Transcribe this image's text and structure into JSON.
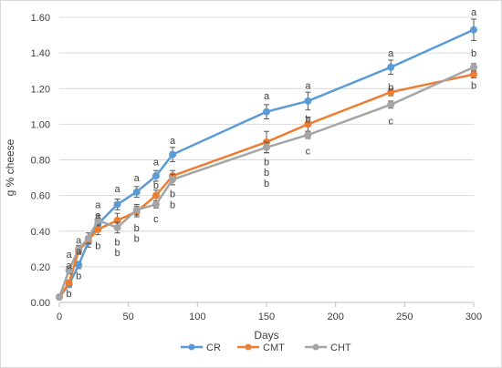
{
  "chart_data": {
    "type": "line",
    "title": "",
    "xlabel": "Days",
    "ylabel": "g % cheese",
    "xlim": [
      0,
      300
    ],
    "ylim": [
      0,
      1.6
    ],
    "xticks": [
      0,
      50,
      100,
      150,
      200,
      250,
      300
    ],
    "yticks": [
      0,
      0.2,
      0.4,
      0.6,
      0.8,
      1.0,
      1.2,
      1.4,
      1.6
    ],
    "ytick_labels": [
      "0.00",
      "0.20",
      "0.40",
      "0.60",
      "0.80",
      "1.00",
      "1.20",
      "1.40",
      "1.60"
    ],
    "grid": true,
    "legend_position": "bottom",
    "series": [
      {
        "name": "CR",
        "color": "#5b9bd5",
        "x": [
          0,
          7,
          14,
          21,
          28,
          42,
          56,
          70,
          82,
          150,
          180,
          240,
          300
        ],
        "values": [
          0.03,
          0.1,
          0.21,
          0.34,
          0.44,
          0.55,
          0.62,
          0.71,
          0.83,
          1.07,
          1.13,
          1.32,
          1.53
        ],
        "error": [
          0.01,
          0.015,
          0.02,
          0.03,
          0.03,
          0.03,
          0.03,
          0.03,
          0.04,
          0.04,
          0.05,
          0.04,
          0.06
        ]
      },
      {
        "name": "CMT",
        "color": "#ed7d31",
        "x": [
          0,
          7,
          14,
          21,
          28,
          42,
          56,
          70,
          82,
          150,
          180,
          240,
          300
        ],
        "values": [
          0.03,
          0.11,
          0.29,
          0.35,
          0.41,
          0.46,
          0.51,
          0.6,
          0.71,
          0.9,
          1.0,
          1.18,
          1.28
        ],
        "error": [
          0.01,
          0.015,
          0.02,
          0.02,
          0.03,
          0.04,
          0.03,
          0.03,
          0.03,
          0.06,
          0.04,
          0.02,
          0.02
        ]
      },
      {
        "name": "CHT",
        "color": "#a5a5a5",
        "x": [
          0,
          7,
          14,
          21,
          28,
          42,
          56,
          70,
          82,
          150,
          180,
          240,
          300
        ],
        "values": [
          0.03,
          0.18,
          0.3,
          0.36,
          0.46,
          0.42,
          0.52,
          0.55,
          0.69,
          0.87,
          0.94,
          1.11,
          1.32
        ],
        "error": [
          0.01,
          0.02,
          0.02,
          0.03,
          0.03,
          0.03,
          0.03,
          0.02,
          0.03,
          0.03,
          0.02,
          0.02,
          0.02
        ]
      }
    ],
    "annotations": [
      {
        "x": 7,
        "y": 0.27,
        "text": "a"
      },
      {
        "x": 7,
        "y": 0.21,
        "text": "a"
      },
      {
        "x": 7,
        "y": 0.05,
        "text": "b"
      },
      {
        "x": 14,
        "y": 0.35,
        "text": "a"
      },
      {
        "x": 14,
        "y": 0.29,
        "text": "a"
      },
      {
        "x": 14,
        "y": 0.15,
        "text": "b"
      },
      {
        "x": 28,
        "y": 0.55,
        "text": "a"
      },
      {
        "x": 28,
        "y": 0.49,
        "text": "a"
      },
      {
        "x": 28,
        "y": 0.32,
        "text": "b"
      },
      {
        "x": 42,
        "y": 0.64,
        "text": "a"
      },
      {
        "x": 42,
        "y": 0.34,
        "text": "b"
      },
      {
        "x": 42,
        "y": 0.28,
        "text": "b"
      },
      {
        "x": 56,
        "y": 0.7,
        "text": "a"
      },
      {
        "x": 56,
        "y": 0.42,
        "text": "b"
      },
      {
        "x": 56,
        "y": 0.36,
        "text": "b"
      },
      {
        "x": 70,
        "y": 0.79,
        "text": "a"
      },
      {
        "x": 70,
        "y": 0.66,
        "text": "b"
      },
      {
        "x": 70,
        "y": 0.47,
        "text": "c"
      },
      {
        "x": 82,
        "y": 0.91,
        "text": "a"
      },
      {
        "x": 82,
        "y": 0.61,
        "text": "b"
      },
      {
        "x": 82,
        "y": 0.55,
        "text": "b"
      },
      {
        "x": 150,
        "y": 1.16,
        "text": "a"
      },
      {
        "x": 150,
        "y": 0.79,
        "text": "b"
      },
      {
        "x": 150,
        "y": 0.73,
        "text": "b"
      },
      {
        "x": 150,
        "y": 0.67,
        "text": "b"
      },
      {
        "x": 180,
        "y": 1.22,
        "text": "a"
      },
      {
        "x": 180,
        "y": 1.03,
        "text": "b"
      },
      {
        "x": 180,
        "y": 0.85,
        "text": "c"
      },
      {
        "x": 240,
        "y": 1.4,
        "text": "a"
      },
      {
        "x": 240,
        "y": 1.21,
        "text": "b"
      },
      {
        "x": 240,
        "y": 1.02,
        "text": "c"
      },
      {
        "x": 300,
        "y": 1.63,
        "text": "a"
      },
      {
        "x": 300,
        "y": 1.4,
        "text": "b"
      },
      {
        "x": 300,
        "y": 1.22,
        "text": "b"
      }
    ]
  }
}
